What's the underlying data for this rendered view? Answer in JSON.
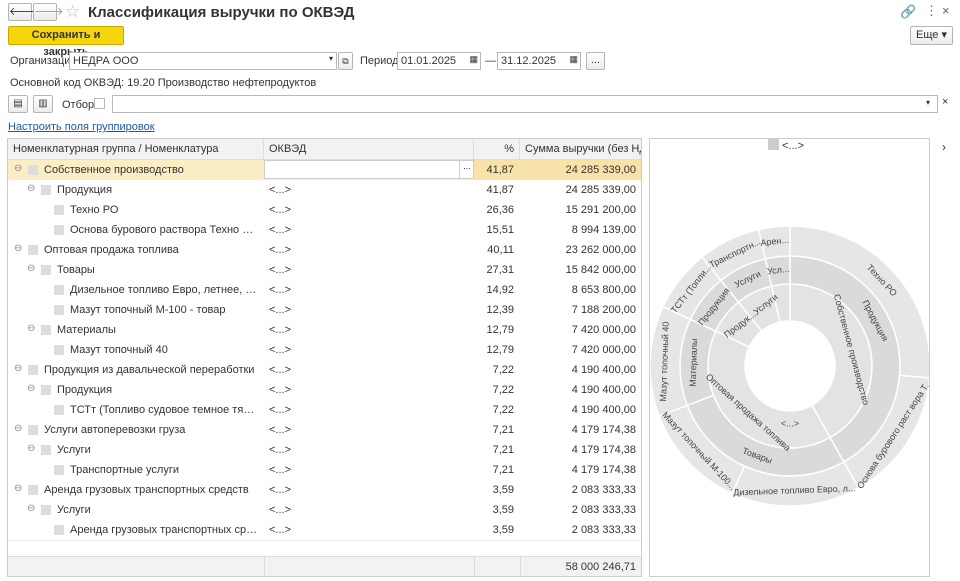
{
  "header": {
    "title": "Классификация выручки по ОКВЭД",
    "save_button": "Сохранить и закрыть",
    "more_button": "Еще"
  },
  "form": {
    "org_label": "Организация:",
    "org_value": "НЕДРА ООО",
    "period_label": "Период:",
    "date_from": "01.01.2025",
    "date_sep": "—",
    "date_to": "31.12.2025",
    "date_button": "...",
    "okved_label": "Основной код ОКВЭД:",
    "okved_value": "19.20 Производство нефтепродуктов",
    "filter_label": "Отбор:",
    "settings_link": "Настроить поля группировок"
  },
  "table": {
    "columns": [
      "Номенклатурная группа / Номенклатура",
      "ОКВЭД",
      "%",
      "Сумма выручки (без НДС)"
    ],
    "rows": [
      {
        "name": "Собственное производство",
        "percent": "41,87",
        "sum": "24 285 339,00"
      },
      {
        "name": "Продукция",
        "okved": "<...>",
        "percent": "41,87",
        "sum": "24 285 339,00"
      },
      {
        "name": "Техно РО",
        "okved": "<...>",
        "percent": "26,36",
        "sum": "15 291 200,00"
      },
      {
        "name": "Основа бурового раствора Техно РУО",
        "okved": "<...>",
        "percent": "15,51",
        "sum": "8 994 139,00"
      },
      {
        "name": "Оптовая продажа топлива",
        "okved": "<...>",
        "percent": "40,11",
        "sum": "23 262 000,00"
      },
      {
        "name": "Товары",
        "okved": "<...>",
        "percent": "27,31",
        "sum": "15 842 000,00"
      },
      {
        "name": "Дизельное топливо Евро, летнее, сорта С ...",
        "okved": "<...>",
        "percent": "14,92",
        "sum": "8 653 800,00"
      },
      {
        "name": "Мазут топочный М-100 - товар",
        "okved": "<...>",
        "percent": "12,39",
        "sum": "7 188 200,00"
      },
      {
        "name": "Материалы",
        "okved": "<...>",
        "percent": "12,79",
        "sum": "7 420 000,00"
      },
      {
        "name": "Мазут топочный 40",
        "okved": "<...>",
        "percent": "12,79",
        "sum": "7 420 000,00"
      },
      {
        "name": "Продукция из давальческой переработки",
        "okved": "<...>",
        "percent": "7,22",
        "sum": "4 190 400,00"
      },
      {
        "name": "Продукция",
        "okved": "<...>",
        "percent": "7,22",
        "sum": "4 190 400,00"
      },
      {
        "name": "ТСТт (Топливо судовое темное тяжелое)",
        "okved": "<...>",
        "percent": "7,22",
        "sum": "4 190 400,00"
      },
      {
        "name": "Услуги автоперевозки груза",
        "okved": "<...>",
        "percent": "7,21",
        "sum": "4 179 174,38"
      },
      {
        "name": "Услуги",
        "okved": "<...>",
        "percent": "7,21",
        "sum": "4 179 174,38"
      },
      {
        "name": "Транспортные услуги",
        "okved": "<...>",
        "percent": "7,21",
        "sum": "4 179 174,38"
      },
      {
        "name": "Аренда грузовых транспортных средств",
        "okved": "<...>",
        "percent": "3,59",
        "sum": "2 083 333,33"
      },
      {
        "name": "Услуги",
        "okved": "<...>",
        "percent": "3,59",
        "sum": "2 083 333,33"
      },
      {
        "name": "Аренда грузовых транспортных средств",
        "okved": "<...>",
        "percent": "3,59",
        "sum": "2 083 333,33"
      }
    ],
    "total": "58 000 246,71"
  },
  "sunburst": {
    "top_label": "<...>",
    "center_label": "<...>",
    "inner_labels": [
      "Собственное производство",
      "Оптовая продажа топлива",
      "Продук...Услуги"
    ],
    "middle_labels": [
      "Продукция",
      "Товары",
      "Материалы",
      "Продукция",
      "Услуги",
      "Усл..."
    ],
    "outer_labels": [
      "Техно РО",
      "Основа бурового раст вора Т...",
      "Дизельное топливо Евро, л...",
      "Мазут топочный М-100...",
      "Мазут топочный 40",
      "ТСТт (Топли...",
      "Транспортн...",
      "Арен..."
    ]
  }
}
